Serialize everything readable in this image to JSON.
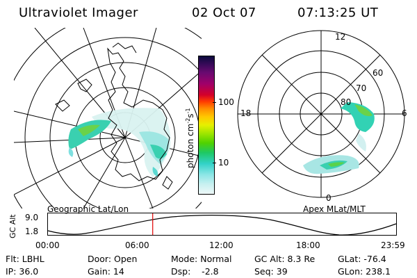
{
  "header": {
    "instrument": "Ultraviolet Imager",
    "date": "02 Oct 07",
    "time": "07:13:25 UT"
  },
  "colorbar": {
    "unit_label": "photon cm",
    "unit_sup1": "-2",
    "unit_mid": "s",
    "unit_sup2": "-1",
    "tick_100": "100",
    "tick_10": "10",
    "colors": [
      "#0a0a3c",
      "#3a0a5a",
      "#6a0a70",
      "#a0006a",
      "#d4002a",
      "#ff3c00",
      "#ff8c00",
      "#ffc800",
      "#e6f000",
      "#a0e600",
      "#50d200",
      "#1ec864",
      "#32d2c8",
      "#8ce6e6",
      "#c8f0f0",
      "#eef8f8"
    ]
  },
  "left_panel": {
    "caption": "Geographic Lat/Lon"
  },
  "right_panel": {
    "caption": "Apex MLat/MLT",
    "mlt_labels": {
      "top": "12",
      "left": "18",
      "right": "6",
      "bottom": "0"
    },
    "lat_labels": [
      "60",
      "70",
      "80"
    ]
  },
  "orbit_plot": {
    "ylabel": "GC Alt",
    "yticks": [
      "9.0",
      "1.8"
    ],
    "xticks": [
      "00:00",
      "06:00",
      "12:00",
      "18:00",
      "23:59"
    ],
    "marker_time_hours": 7.22,
    "marker_color": "#e00000"
  },
  "footer": {
    "row1": [
      {
        "label": "Flt: LBHL"
      },
      {
        "label": "Door: Open"
      },
      {
        "label": "Mode: Normal"
      },
      {
        "label": "GC Alt: 8.3 Re"
      },
      {
        "label": "GLat: -76.4"
      }
    ],
    "row2": [
      {
        "label": "IP: 36.0"
      },
      {
        "label": "Gain: 14"
      },
      {
        "label": "Dsp:    -2.8"
      },
      {
        "label": "Seq: 39"
      },
      {
        "label": "GLon: 238.1"
      }
    ]
  }
}
